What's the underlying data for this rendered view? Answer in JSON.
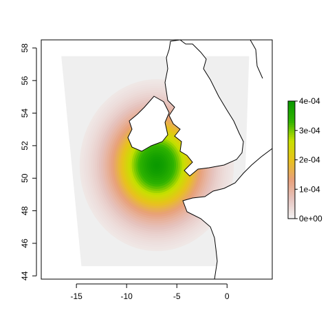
{
  "chart_data": {
    "type": "heatmap",
    "title": "",
    "xlabel": "",
    "ylabel": "",
    "xlim": [
      -18.5,
      4.5
    ],
    "ylim": [
      43.8,
      58.5
    ],
    "x_ticks": [
      -15,
      -10,
      -5,
      0
    ],
    "x_tick_labels": [
      "-15",
      "-10",
      "-5",
      "0"
    ],
    "y_ticks": [
      44,
      46,
      48,
      50,
      52,
      54,
      56,
      58
    ],
    "y_tick_labels": [
      "44",
      "46",
      "48",
      "50",
      "52",
      "54",
      "56",
      "58"
    ],
    "density_peak": {
      "lon": -7.0,
      "lat": 50.8,
      "value": 0.0004
    },
    "spread_deg": {
      "lon": 4.8,
      "lat": 3.3
    },
    "domain_corners": [
      [
        -16.5,
        57.5
      ],
      [
        2.2,
        57.5
      ],
      [
        1.5,
        44.6
      ],
      [
        -14.5,
        44.6
      ]
    ],
    "colors": {
      "background_domain": "#efefef",
      "ramp": [
        "#f2f2f2",
        "#e6c3be",
        "#e8a07a",
        "#e8c21c",
        "#c8e000",
        "#31b400",
        "#0b9a00"
      ]
    },
    "colorbar": {
      "min": 0,
      "max": 0.0004,
      "tick_values": [
        0,
        0.0001,
        0.0002,
        0.0003,
        0.0004
      ],
      "tick_labels": [
        "0e+00",
        "1e-04",
        "2e-04",
        "3e-04",
        "4e-04"
      ]
    },
    "grid": false,
    "legend_position": "right"
  }
}
